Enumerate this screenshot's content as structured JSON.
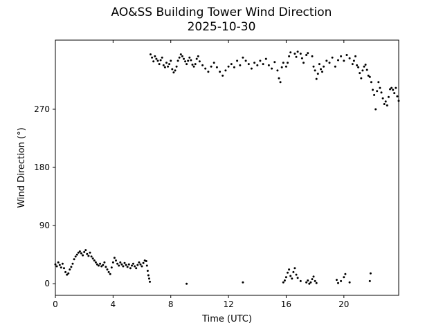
{
  "chart_data": {
    "type": "scatter",
    "title": "AO&SS Building Tower Wind Direction",
    "subtitle": "2025-10-30",
    "xlabel": "Time (UTC)",
    "ylabel": "Wind Direction (°)",
    "xlim": [
      0,
      23.8
    ],
    "ylim": [
      -18,
      377
    ],
    "xticks": [
      0,
      4,
      8,
      12,
      16,
      20
    ],
    "yticks": [
      0,
      90,
      180,
      270
    ],
    "grid": false,
    "series": [
      {
        "color": "#000000",
        "points": [
          [
            0.0,
            30
          ],
          [
            0.1,
            27
          ],
          [
            0.2,
            33
          ],
          [
            0.3,
            29
          ],
          [
            0.4,
            25
          ],
          [
            0.5,
            31
          ],
          [
            0.6,
            24
          ],
          [
            0.7,
            18
          ],
          [
            0.8,
            14
          ],
          [
            0.9,
            16
          ],
          [
            1.0,
            22
          ],
          [
            1.1,
            26
          ],
          [
            1.2,
            31
          ],
          [
            1.3,
            38
          ],
          [
            1.4,
            42
          ],
          [
            1.5,
            45
          ],
          [
            1.6,
            48
          ],
          [
            1.7,
            50
          ],
          [
            1.8,
            47
          ],
          [
            1.9,
            44
          ],
          [
            2.0,
            49
          ],
          [
            2.1,
            52
          ],
          [
            2.2,
            46
          ],
          [
            2.3,
            43
          ],
          [
            2.4,
            48
          ],
          [
            2.5,
            42
          ],
          [
            2.6,
            39
          ],
          [
            2.7,
            36
          ],
          [
            2.8,
            33
          ],
          [
            2.9,
            30
          ],
          [
            3.0,
            28
          ],
          [
            3.1,
            31
          ],
          [
            3.2,
            27
          ],
          [
            3.3,
            29
          ],
          [
            3.4,
            33
          ],
          [
            3.5,
            26
          ],
          [
            3.6,
            22
          ],
          [
            3.7,
            18
          ],
          [
            3.8,
            15
          ],
          [
            3.9,
            25
          ],
          [
            4.0,
            33
          ],
          [
            4.1,
            40
          ],
          [
            4.2,
            36
          ],
          [
            4.3,
            31
          ],
          [
            4.4,
            28
          ],
          [
            4.5,
            33
          ],
          [
            4.6,
            30
          ],
          [
            4.7,
            27
          ],
          [
            4.8,
            32
          ],
          [
            4.9,
            29
          ],
          [
            5.0,
            26
          ],
          [
            5.1,
            30
          ],
          [
            5.2,
            24
          ],
          [
            5.3,
            28
          ],
          [
            5.4,
            31
          ],
          [
            5.5,
            27
          ],
          [
            5.6,
            24
          ],
          [
            5.7,
            29
          ],
          [
            5.8,
            33
          ],
          [
            5.9,
            30
          ],
          [
            6.0,
            27
          ],
          [
            6.1,
            32
          ],
          [
            6.2,
            36
          ],
          [
            6.3,
            35
          ],
          [
            6.35,
            28
          ],
          [
            6.4,
            20
          ],
          [
            6.45,
            13
          ],
          [
            6.5,
            8
          ],
          [
            6.55,
            3
          ],
          [
            6.6,
            355
          ],
          [
            6.7,
            350
          ],
          [
            6.8,
            344
          ],
          [
            6.9,
            352
          ],
          [
            7.0,
            348
          ],
          [
            7.1,
            345
          ],
          [
            7.2,
            340
          ],
          [
            7.3,
            346
          ],
          [
            7.4,
            350
          ],
          [
            7.5,
            338
          ],
          [
            7.6,
            335
          ],
          [
            7.7,
            342
          ],
          [
            7.8,
            336
          ],
          [
            7.9,
            340
          ],
          [
            8.0,
            345
          ],
          [
            8.1,
            332
          ],
          [
            8.2,
            327
          ],
          [
            8.3,
            330
          ],
          [
            8.4,
            336
          ],
          [
            8.5,
            345
          ],
          [
            8.6,
            350
          ],
          [
            8.7,
            355
          ],
          [
            8.8,
            352
          ],
          [
            8.9,
            348
          ],
          [
            9.0,
            344
          ],
          [
            9.1,
            340
          ],
          [
            9.2,
            345
          ],
          [
            9.3,
            350
          ],
          [
            9.4,
            346
          ],
          [
            9.5,
            339
          ],
          [
            9.6,
            336
          ],
          [
            9.7,
            340
          ],
          [
            9.8,
            348
          ],
          [
            9.9,
            352
          ],
          [
            10.0,
            344
          ],
          [
            10.2,
            338
          ],
          [
            10.4,
            333
          ],
          [
            10.6,
            328
          ],
          [
            10.8,
            336
          ],
          [
            11.0,
            342
          ],
          [
            11.2,
            335
          ],
          [
            11.4,
            328
          ],
          [
            11.6,
            322
          ],
          [
            11.8,
            330
          ],
          [
            12.0,
            336
          ],
          [
            12.2,
            340
          ],
          [
            12.4,
            335
          ],
          [
            12.6,
            345
          ],
          [
            12.8,
            338
          ],
          [
            13.0,
            350
          ],
          [
            13.2,
            345
          ],
          [
            13.4,
            340
          ],
          [
            13.6,
            333
          ],
          [
            13.8,
            342
          ],
          [
            14.0,
            338
          ],
          [
            14.2,
            345
          ],
          [
            14.4,
            340
          ],
          [
            14.6,
            348
          ],
          [
            14.8,
            338
          ],
          [
            15.0,
            333
          ],
          [
            15.2,
            343
          ],
          [
            15.4,
            330
          ],
          [
            15.5,
            318
          ],
          [
            15.6,
            312
          ],
          [
            15.7,
            335
          ],
          [
            15.8,
            342
          ],
          [
            16.0,
            336
          ],
          [
            16.1,
            342
          ],
          [
            16.2,
            352
          ],
          [
            16.3,
            358
          ],
          [
            16.6,
            356
          ],
          [
            16.7,
            351
          ],
          [
            16.8,
            359
          ],
          [
            17.0,
            356
          ],
          [
            17.1,
            349
          ],
          [
            17.2,
            342
          ],
          [
            17.4,
            354
          ],
          [
            17.5,
            357
          ],
          [
            17.8,
            352
          ],
          [
            17.9,
            336
          ],
          [
            18.0,
            330
          ],
          [
            18.1,
            317
          ],
          [
            18.2,
            325
          ],
          [
            18.3,
            340
          ],
          [
            18.4,
            332
          ],
          [
            18.5,
            328
          ],
          [
            18.6,
            336
          ],
          [
            18.8,
            345
          ],
          [
            19.0,
            342
          ],
          [
            19.2,
            350
          ],
          [
            19.4,
            336
          ],
          [
            19.6,
            346
          ],
          [
            19.8,
            352
          ],
          [
            20.0,
            345
          ],
          [
            20.2,
            354
          ],
          [
            20.4,
            349
          ],
          [
            20.6,
            340
          ],
          [
            20.7,
            345
          ],
          [
            20.8,
            352
          ],
          [
            20.9,
            338
          ],
          [
            21.0,
            335
          ],
          [
            21.1,
            326
          ],
          [
            21.2,
            318
          ],
          [
            21.3,
            330
          ],
          [
            21.4,
            336
          ],
          [
            21.5,
            339
          ],
          [
            21.6,
            331
          ],
          [
            21.7,
            322
          ],
          [
            21.8,
            320
          ],
          [
            21.9,
            312
          ],
          [
            22.0,
            300
          ],
          [
            22.1,
            292
          ],
          [
            22.2,
            270
          ],
          [
            22.3,
            298
          ],
          [
            22.4,
            312
          ],
          [
            22.5,
            303
          ],
          [
            22.6,
            296
          ],
          [
            22.7,
            287
          ],
          [
            22.8,
            278
          ],
          [
            22.9,
            282
          ],
          [
            23.0,
            276
          ],
          [
            23.1,
            289
          ],
          [
            23.2,
            301
          ],
          [
            23.3,
            303
          ],
          [
            23.4,
            300
          ],
          [
            23.5,
            295
          ],
          [
            23.6,
            303
          ],
          [
            23.7,
            290
          ],
          [
            23.8,
            283
          ],
          [
            9.1,
            0
          ],
          [
            13.0,
            2
          ],
          [
            15.8,
            2
          ],
          [
            15.9,
            5
          ],
          [
            16.0,
            10
          ],
          [
            16.1,
            17
          ],
          [
            16.2,
            22
          ],
          [
            16.3,
            12
          ],
          [
            16.4,
            8
          ],
          [
            16.5,
            18
          ],
          [
            16.6,
            24
          ],
          [
            16.7,
            14
          ],
          [
            16.8,
            9
          ],
          [
            17.0,
            4
          ],
          [
            17.4,
            2
          ],
          [
            17.5,
            5
          ],
          [
            17.6,
            0
          ],
          [
            17.7,
            2
          ],
          [
            17.8,
            7
          ],
          [
            17.9,
            11
          ],
          [
            18.0,
            4
          ],
          [
            18.1,
            1
          ],
          [
            19.5,
            6
          ],
          [
            19.6,
            1
          ],
          [
            19.8,
            4
          ],
          [
            20.0,
            10
          ],
          [
            20.1,
            15
          ],
          [
            20.4,
            2
          ],
          [
            21.8,
            4
          ],
          [
            21.85,
            16
          ]
        ]
      }
    ]
  }
}
